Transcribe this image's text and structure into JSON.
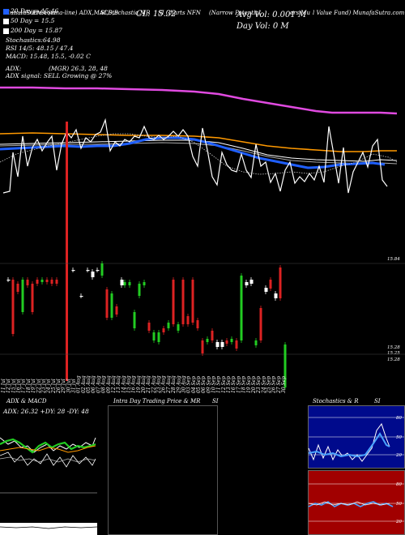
{
  "header": {
    "row1": [
      "MunafaSutra.com",
      "EMA (ema-line) ADX,MACD,B",
      "SI,Stochastic,MR",
      "SI Charts NFN",
      "(Narrow Potential",
      "ers Mu",
      "l Value Fund) MunafaSutra.com"
    ],
    "cl_label": "CL: 15.32",
    "avg_vol": "Avg Vol: 0.001 M",
    "day_vol": "Day Vol: 0   M",
    "adx_line": "ADX:",
    "mgr_line": "(MGR) 26.3,  28,  48",
    "adx_signal": "ADX  signal: SELL  Growing @ 27%"
  },
  "legend": [
    {
      "label": "20  Day  =  15.46",
      "color": "#1f5fff"
    },
    {
      "label": "50  Day  =  15.5",
      "color": "#ffffff"
    },
    {
      "label": "200  Day  =  15.87",
      "color": "#ffffff"
    },
    {
      "label": "Stochastics:64.98",
      "color": null
    },
    {
      "label": "RSI 14/5: 48.15 / 47.4",
      "color": null
    },
    {
      "label": "MACD: 15.48,  15.5,  -0.02  C",
      "color": null
    }
  ],
  "price_labels": {
    "top": "15.84",
    "bottom1": "15.28",
    "bottom2": "15.25",
    "bottom3": "15.28"
  },
  "dates": [
    "11 Jul",
    "12 Jul",
    "15 Jul",
    "16 Jul",
    "17 Jul",
    "18 Jul",
    "19 Jul",
    "22 Jul",
    "23 Jul",
    "24 Jul",
    "25 Jul",
    "26 Jul",
    "29 Jul",
    "30 Jul",
    "31 Jul",
    "01 Aug",
    "02 Aug",
    "05 Aug",
    "06 Aug",
    "07 Aug",
    "08 Aug",
    "09 Aug",
    "12 Aug",
    "13 Aug",
    "14 Aug",
    "15 Aug",
    "16 Aug",
    "19 Aug",
    "20 Aug",
    "21 Aug",
    "22 Aug",
    "23 Aug",
    "26 Aug",
    "27 Aug",
    "28 Aug",
    "29 Aug",
    "30 Aug",
    "03 Sep",
    "04 Sep",
    "05 Sep",
    "06 Sep",
    "09 Sep",
    "10 Sep",
    "11 Sep",
    "12 Sep",
    "13 Sep",
    "16 Sep",
    "17 Sep",
    "18 Sep",
    "19 Sep",
    "20 Sep",
    "23 Sep",
    "24 Sep",
    "25 Sep",
    "26 Sep",
    "27 Sep",
    "30 Sep"
  ],
  "panels": {
    "adx_title": "ADX  & MACD",
    "adx_values": "ADX: 26.32  +DY: 28  -DY: 48",
    "intraday_title": "Intra  Day Trading Price  & MR",
    "intraday_si": "SI",
    "stoch_title": "Stochastics & R",
    "stoch_si": "SI",
    "stoch_levels": [
      "80",
      "50",
      "20"
    ],
    "rsi_levels": [
      "80",
      "50",
      "20"
    ]
  },
  "colors": {
    "ema20": "#1f5fff",
    "ema200": "#ff9900",
    "top_line": "#e04ae0",
    "green": "#22cc22",
    "red": "#dd2222"
  }
}
